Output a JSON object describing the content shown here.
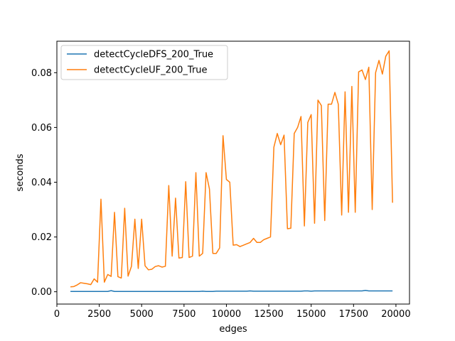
{
  "chart_data": {
    "type": "line",
    "title": "",
    "xlabel": "edges",
    "ylabel": "seconds",
    "xlim": [
      0,
      20800
    ],
    "ylim": [
      -0.0045,
      0.0915
    ],
    "xticks": [
      0,
      2500,
      5000,
      7500,
      10000,
      12500,
      15000,
      17500,
      20000
    ],
    "yticks": [
      0.0,
      0.02,
      0.04,
      0.06,
      0.08
    ],
    "xtick_labels": [
      "0",
      "2500",
      "5000",
      "7500",
      "10000",
      "12500",
      "15000",
      "17500",
      "20000"
    ],
    "ytick_labels": [
      "0.00",
      "0.02",
      "0.04",
      "0.06",
      "0.08"
    ],
    "grid": false,
    "legend_position": "top-left",
    "x": [
      800,
      1000,
      1200,
      1400,
      1600,
      1800,
      2000,
      2200,
      2400,
      2600,
      2800,
      3000,
      3200,
      3400,
      3600,
      3800,
      4000,
      4200,
      4400,
      4600,
      4800,
      5000,
      5200,
      5400,
      5600,
      5800,
      6000,
      6200,
      6400,
      6600,
      6800,
      7000,
      7200,
      7400,
      7600,
      7800,
      8000,
      8200,
      8400,
      8600,
      8800,
      9000,
      9200,
      9400,
      9600,
      9800,
      10000,
      10200,
      10400,
      10600,
      10800,
      11000,
      11200,
      11400,
      11600,
      11800,
      12000,
      12200,
      12400,
      12600,
      12800,
      13000,
      13200,
      13400,
      13600,
      13800,
      14000,
      14200,
      14400,
      14600,
      14800,
      15000,
      15200,
      15400,
      15600,
      15800,
      16000,
      16200,
      16400,
      16600,
      16800,
      17000,
      17200,
      17400,
      17600,
      17800,
      18000,
      18200,
      18400,
      18600,
      18800,
      19000,
      19200,
      19400,
      19600,
      19800
    ],
    "series": [
      {
        "name": "detectCycleDFS_200_True",
        "color": "#1f77b4",
        "values": [
          0.0001,
          0.0001,
          0.0001,
          0.0001,
          0.0001,
          0.0001,
          0.0001,
          0.0001,
          0.0001,
          0.0001,
          0.0001,
          0.0001,
          0.0004,
          0.0001,
          0.0001,
          0.0001,
          0.0001,
          0.0001,
          0.0001,
          0.0001,
          0.0001,
          0.0001,
          0.0001,
          0.0001,
          0.0001,
          0.0001,
          0.0001,
          0.0001,
          0.0001,
          0.0001,
          0.0001,
          0.0001,
          0.0001,
          0.0001,
          0.0001,
          0.0001,
          0.0001,
          0.0001,
          0.0001,
          0.0002,
          0.0001,
          0.0001,
          0.0001,
          0.0002,
          0.0002,
          0.0002,
          0.0002,
          0.0002,
          0.0002,
          0.0002,
          0.0002,
          0.0002,
          0.0002,
          0.0003,
          0.0002,
          0.0002,
          0.0002,
          0.0002,
          0.0002,
          0.0002,
          0.0002,
          0.0002,
          0.0002,
          0.0002,
          0.0002,
          0.0002,
          0.0002,
          0.0002,
          0.0002,
          0.0003,
          0.0003,
          0.0002,
          0.0003,
          0.0003,
          0.0003,
          0.0003,
          0.0003,
          0.0003,
          0.0003,
          0.0003,
          0.0003,
          0.0003,
          0.0003,
          0.0003,
          0.0003,
          0.0003,
          0.0003,
          0.0005,
          0.0003,
          0.0003,
          0.0003,
          0.0003,
          0.0003,
          0.0003,
          0.0003,
          0.0003
        ]
      },
      {
        "name": "detectCycleUF_200_True",
        "color": "#ff7f0e",
        "values": [
          0.0018,
          0.0019,
          0.0025,
          0.0033,
          0.0031,
          0.0029,
          0.0026,
          0.0047,
          0.0035,
          0.0338,
          0.0035,
          0.0063,
          0.0056,
          0.029,
          0.0055,
          0.005,
          0.0305,
          0.0057,
          0.0093,
          0.0265,
          0.0085,
          0.0265,
          0.0095,
          0.008,
          0.0082,
          0.0092,
          0.0095,
          0.009,
          0.0093,
          0.0388,
          0.013,
          0.0342,
          0.0123,
          0.0125,
          0.0402,
          0.0125,
          0.013,
          0.0435,
          0.013,
          0.014,
          0.0435,
          0.0375,
          0.014,
          0.014,
          0.016,
          0.057,
          0.041,
          0.04,
          0.017,
          0.0172,
          0.0165,
          0.017,
          0.0175,
          0.018,
          0.0195,
          0.018,
          0.018,
          0.019,
          0.0195,
          0.02,
          0.0528,
          0.0578,
          0.0537,
          0.0572,
          0.023,
          0.0232,
          0.0578,
          0.06,
          0.064,
          0.024,
          0.0618,
          0.0647,
          0.025,
          0.07,
          0.068,
          0.026,
          0.0685,
          0.0685,
          0.0728,
          0.0685,
          0.028,
          0.073,
          0.029,
          0.075,
          0.029,
          0.0803,
          0.081,
          0.0775,
          0.082,
          0.03,
          0.08,
          0.0845,
          0.0795,
          0.086,
          0.088,
          0.0325
        ]
      }
    ]
  }
}
